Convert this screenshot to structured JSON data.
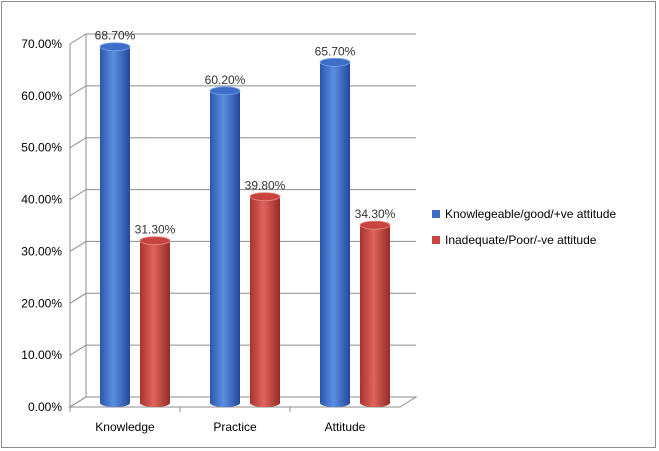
{
  "chart_data": {
    "type": "bar",
    "style": "3d-cylinder",
    "categories": [
      "Knowledge",
      "Practice",
      "Attitude"
    ],
    "series": [
      {
        "name": "Knowlegeable/good/+ve attitude",
        "values": [
          68.7,
          60.2,
          65.7
        ],
        "labels": [
          "68.70%",
          "60.20%",
          "65.70%"
        ],
        "color": "#3d6fc9"
      },
      {
        "name": "Inadequate/Poor/-ve attitude",
        "values": [
          31.3,
          39.8,
          34.3
        ],
        "labels": [
          "31.30%",
          "39.80%",
          "34.30%"
        ],
        "color": "#c8453f"
      }
    ],
    "ylim": [
      0,
      70
    ],
    "yticks": [
      "0.00%",
      "10.00%",
      "20.00%",
      "30.00%",
      "40.00%",
      "50.00%",
      "60.00%",
      "70.00%"
    ],
    "grid": true,
    "legend_position": "right"
  }
}
